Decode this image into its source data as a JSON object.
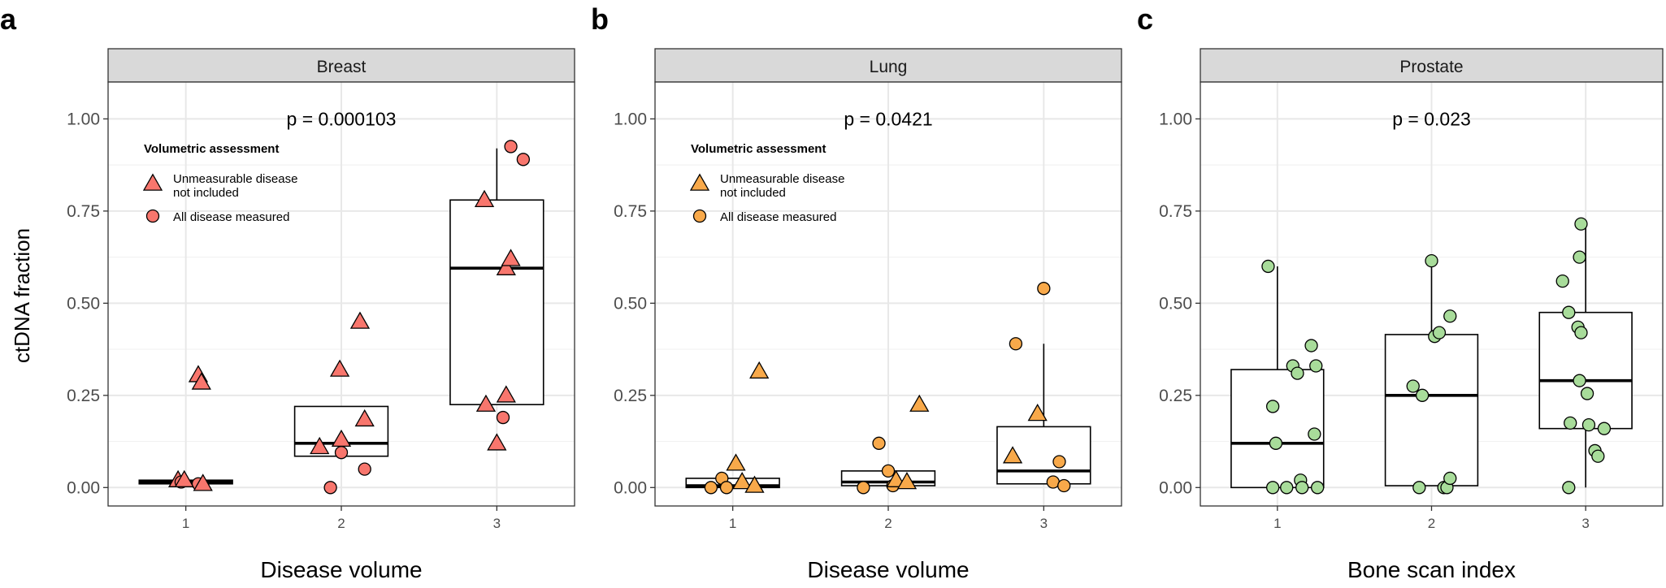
{
  "figure": {
    "y_axis_label": "ctDNA fraction",
    "legend_title": "Volumetric assessment",
    "legend_entries": [
      {
        "shape": "triangle",
        "label_line1": "Unmeasurable disease",
        "label_line2": "not included"
      },
      {
        "shape": "circle",
        "label_line1": "All disease measured",
        "label_line2": ""
      }
    ]
  },
  "chart_data": [
    {
      "type": "box+scatter",
      "panel_letter": "a",
      "title": "Breast",
      "annotation": "p = 0.000103",
      "xlabel": "Disease volume",
      "ylabel": "ctDNA fraction",
      "categories": [
        "1",
        "2",
        "3"
      ],
      "yticks": [
        "0.00",
        "0.25",
        "0.50",
        "0.75",
        "1.00"
      ],
      "ylim": [
        -0.05,
        1.1
      ],
      "color": "#f8766d",
      "legend": true,
      "boxes": [
        {
          "q1": 0.01,
          "median": 0.015,
          "q3": 0.02,
          "whisker_low": 0.01,
          "whisker_high": 0.02
        },
        {
          "q1": 0.085,
          "median": 0.12,
          "q3": 0.22,
          "whisker_low": 0.085,
          "whisker_high": 0.22
        },
        {
          "q1": 0.225,
          "median": 0.595,
          "q3": 0.78,
          "whisker_low": 0.225,
          "whisker_high": 0.92
        }
      ],
      "points": [
        {
          "x": 0.95,
          "y": 0.02,
          "shape": "triangle"
        },
        {
          "x": 0.97,
          "y": 0.015,
          "shape": "circle"
        },
        {
          "x": 1.08,
          "y": 0.01,
          "shape": "circle"
        },
        {
          "x": 1.08,
          "y": 0.305,
          "shape": "triangle"
        },
        {
          "x": 1.1,
          "y": 0.285,
          "shape": "triangle"
        },
        {
          "x": 0.99,
          "y": 0.02,
          "shape": "triangle"
        },
        {
          "x": 1.11,
          "y": 0.01,
          "shape": "triangle"
        },
        {
          "x": 1.86,
          "y": 0.11,
          "shape": "triangle"
        },
        {
          "x": 1.93,
          "y": 0.0,
          "shape": "circle"
        },
        {
          "x": 1.99,
          "y": 0.32,
          "shape": "triangle"
        },
        {
          "x": 2.0,
          "y": 0.13,
          "shape": "triangle"
        },
        {
          "x": 2.0,
          "y": 0.095,
          "shape": "circle"
        },
        {
          "x": 2.12,
          "y": 0.45,
          "shape": "triangle"
        },
        {
          "x": 2.15,
          "y": 0.185,
          "shape": "triangle"
        },
        {
          "x": 2.15,
          "y": 0.05,
          "shape": "circle"
        },
        {
          "x": 2.92,
          "y": 0.78,
          "shape": "triangle"
        },
        {
          "x": 2.93,
          "y": 0.225,
          "shape": "triangle"
        },
        {
          "x": 3.0,
          "y": 0.12,
          "shape": "triangle"
        },
        {
          "x": 3.04,
          "y": 0.19,
          "shape": "circle"
        },
        {
          "x": 3.06,
          "y": 0.25,
          "shape": "triangle"
        },
        {
          "x": 3.06,
          "y": 0.595,
          "shape": "triangle"
        },
        {
          "x": 3.09,
          "y": 0.62,
          "shape": "triangle"
        },
        {
          "x": 3.09,
          "y": 0.925,
          "shape": "circle"
        },
        {
          "x": 3.17,
          "y": 0.89,
          "shape": "circle"
        }
      ]
    },
    {
      "type": "box+scatter",
      "panel_letter": "b",
      "title": "Lung",
      "annotation": "p = 0.0421",
      "xlabel": "Disease volume",
      "ylabel": "",
      "categories": [
        "1",
        "2",
        "3"
      ],
      "yticks": [
        "0.00",
        "0.25",
        "0.50",
        "0.75",
        "1.00"
      ],
      "ylim": [
        -0.05,
        1.1
      ],
      "color": "#f8a94a",
      "legend": true,
      "boxes": [
        {
          "q1": 0.0,
          "median": 0.005,
          "q3": 0.025,
          "whisker_low": 0.0,
          "whisker_high": 0.025
        },
        {
          "q1": 0.005,
          "median": 0.015,
          "q3": 0.045,
          "whisker_low": 0.005,
          "whisker_high": 0.045
        },
        {
          "q1": 0.01,
          "median": 0.045,
          "q3": 0.165,
          "whisker_low": 0.01,
          "whisker_high": 0.39
        }
      ],
      "points": [
        {
          "x": 0.86,
          "y": 0.0,
          "shape": "circle"
        },
        {
          "x": 0.93,
          "y": 0.025,
          "shape": "circle"
        },
        {
          "x": 0.96,
          "y": 0.0,
          "shape": "circle"
        },
        {
          "x": 1.02,
          "y": 0.065,
          "shape": "triangle"
        },
        {
          "x": 1.06,
          "y": 0.015,
          "shape": "triangle"
        },
        {
          "x": 1.14,
          "y": 0.005,
          "shape": "triangle"
        },
        {
          "x": 1.17,
          "y": 0.315,
          "shape": "triangle"
        },
        {
          "x": 1.84,
          "y": 0.0,
          "shape": "circle"
        },
        {
          "x": 1.94,
          "y": 0.12,
          "shape": "circle"
        },
        {
          "x": 2.0,
          "y": 0.045,
          "shape": "circle"
        },
        {
          "x": 2.03,
          "y": 0.005,
          "shape": "circle"
        },
        {
          "x": 2.05,
          "y": 0.02,
          "shape": "triangle"
        },
        {
          "x": 2.12,
          "y": 0.015,
          "shape": "triangle"
        },
        {
          "x": 2.2,
          "y": 0.225,
          "shape": "triangle"
        },
        {
          "x": 2.8,
          "y": 0.085,
          "shape": "triangle"
        },
        {
          "x": 2.82,
          "y": 0.39,
          "shape": "circle"
        },
        {
          "x": 2.96,
          "y": 0.2,
          "shape": "triangle"
        },
        {
          "x": 3.0,
          "y": 0.54,
          "shape": "circle"
        },
        {
          "x": 3.06,
          "y": 0.015,
          "shape": "circle"
        },
        {
          "x": 3.1,
          "y": 0.07,
          "shape": "circle"
        },
        {
          "x": 3.13,
          "y": 0.005,
          "shape": "circle"
        }
      ]
    },
    {
      "type": "box+scatter",
      "panel_letter": "c",
      "title": "Prostate",
      "annotation": "p = 0.023",
      "xlabel": "Bone scan index",
      "ylabel": "",
      "categories": [
        "1",
        "2",
        "3"
      ],
      "yticks": [
        "0.00",
        "0.25",
        "0.50",
        "0.75",
        "1.00"
      ],
      "ylim": [
        -0.05,
        1.1
      ],
      "color": "#a8dc9a",
      "legend": false,
      "boxes": [
        {
          "q1": 0.0,
          "median": 0.12,
          "q3": 0.32,
          "whisker_low": 0.0,
          "whisker_high": 0.6
        },
        {
          "q1": 0.005,
          "median": 0.25,
          "q3": 0.415,
          "whisker_low": 0.005,
          "whisker_high": 0.62
        },
        {
          "q1": 0.16,
          "median": 0.29,
          "q3": 0.475,
          "whisker_low": 0.0,
          "whisker_high": 0.715
        }
      ],
      "points": [
        {
          "x": 0.94,
          "y": 0.6,
          "shape": "circle"
        },
        {
          "x": 0.97,
          "y": 0.0,
          "shape": "circle"
        },
        {
          "x": 0.97,
          "y": 0.22,
          "shape": "circle"
        },
        {
          "x": 0.99,
          "y": 0.12,
          "shape": "circle"
        },
        {
          "x": 1.06,
          "y": 0.0,
          "shape": "circle"
        },
        {
          "x": 1.1,
          "y": 0.33,
          "shape": "circle"
        },
        {
          "x": 1.13,
          "y": 0.31,
          "shape": "circle"
        },
        {
          "x": 1.15,
          "y": 0.02,
          "shape": "circle"
        },
        {
          "x": 1.16,
          "y": 0.0,
          "shape": "circle"
        },
        {
          "x": 1.22,
          "y": 0.385,
          "shape": "circle"
        },
        {
          "x": 1.24,
          "y": 0.145,
          "shape": "circle"
        },
        {
          "x": 1.25,
          "y": 0.33,
          "shape": "circle"
        },
        {
          "x": 1.26,
          "y": 0.0,
          "shape": "circle"
        },
        {
          "x": 1.88,
          "y": 0.275,
          "shape": "circle"
        },
        {
          "x": 1.92,
          "y": 0.0,
          "shape": "circle"
        },
        {
          "x": 1.94,
          "y": 0.25,
          "shape": "circle"
        },
        {
          "x": 2.0,
          "y": 0.615,
          "shape": "circle"
        },
        {
          "x": 2.02,
          "y": 0.41,
          "shape": "circle"
        },
        {
          "x": 2.05,
          "y": 0.42,
          "shape": "circle"
        },
        {
          "x": 2.08,
          "y": 0.0,
          "shape": "circle"
        },
        {
          "x": 2.1,
          "y": 0.0,
          "shape": "circle"
        },
        {
          "x": 2.12,
          "y": 0.025,
          "shape": "circle"
        },
        {
          "x": 2.12,
          "y": 0.465,
          "shape": "circle"
        },
        {
          "x": 2.85,
          "y": 0.56,
          "shape": "circle"
        },
        {
          "x": 2.89,
          "y": 0.0,
          "shape": "circle"
        },
        {
          "x": 2.89,
          "y": 0.475,
          "shape": "circle"
        },
        {
          "x": 2.9,
          "y": 0.175,
          "shape": "circle"
        },
        {
          "x": 2.95,
          "y": 0.435,
          "shape": "circle"
        },
        {
          "x": 2.96,
          "y": 0.29,
          "shape": "circle"
        },
        {
          "x": 2.96,
          "y": 0.625,
          "shape": "circle"
        },
        {
          "x": 2.97,
          "y": 0.715,
          "shape": "circle"
        },
        {
          "x": 2.97,
          "y": 0.42,
          "shape": "circle"
        },
        {
          "x": 3.01,
          "y": 0.255,
          "shape": "circle"
        },
        {
          "x": 3.02,
          "y": 0.17,
          "shape": "circle"
        },
        {
          "x": 3.06,
          "y": 0.1,
          "shape": "circle"
        },
        {
          "x": 3.08,
          "y": 0.085,
          "shape": "circle"
        },
        {
          "x": 3.12,
          "y": 0.16,
          "shape": "circle"
        }
      ]
    }
  ]
}
